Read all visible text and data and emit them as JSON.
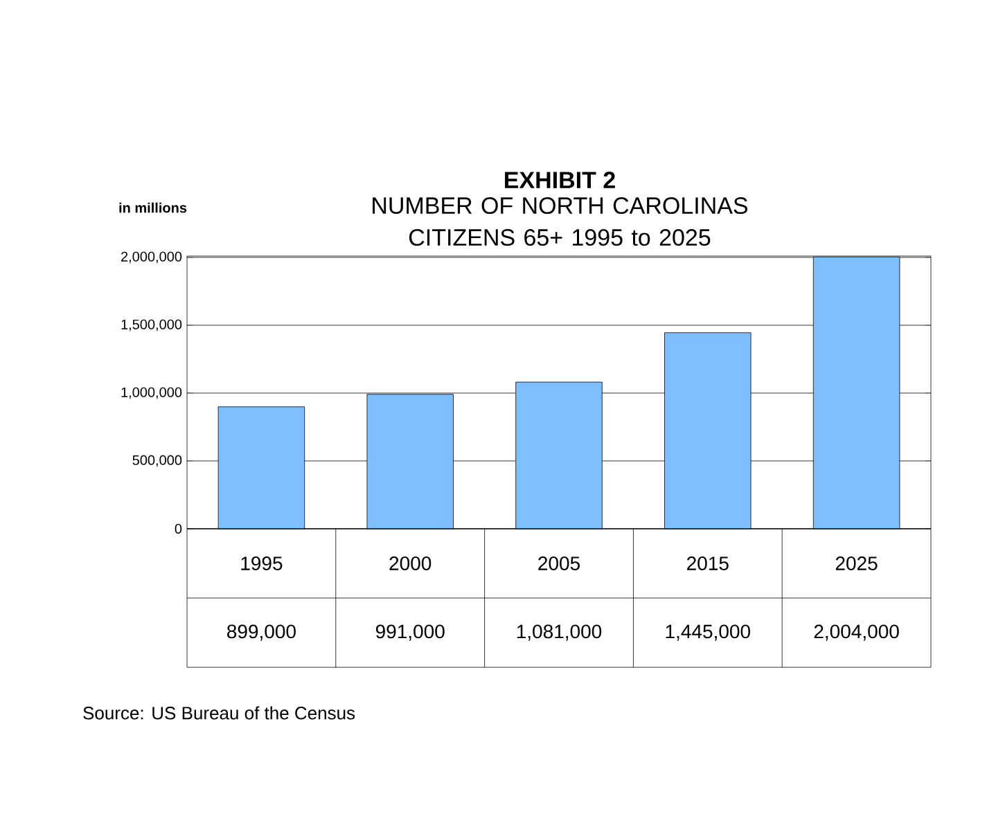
{
  "chart_data": {
    "type": "bar",
    "title": "EXHIBIT 2",
    "subtitle": "NUMBER OF NORTH CAROLINAS CITIZENS 65+ 1995 to 2025",
    "ylabel": "in millions",
    "annotations": [
      "Source:  US Bureau of the Census"
    ],
    "categories": [
      "1995",
      "2000",
      "2005",
      "2015",
      "2025"
    ],
    "values": [
      899000,
      991000,
      1081000,
      1445000,
      2004000
    ],
    "value_labels": [
      "899,000",
      "991,000",
      "1,081,000",
      "1,445,000",
      "2,004,000"
    ],
    "color": "#80bfff",
    "ylim": [
      0,
      2010000
    ],
    "yticks": [
      {
        "value": 0,
        "label": "0"
      },
      {
        "value": 500000,
        "label": "500,000"
      },
      {
        "value": 1000000,
        "label": "1,000,000"
      },
      {
        "value": 1500000,
        "label": "1,500,000"
      },
      {
        "value": 2000000,
        "label": "2,000,000"
      }
    ],
    "grid": "y"
  }
}
